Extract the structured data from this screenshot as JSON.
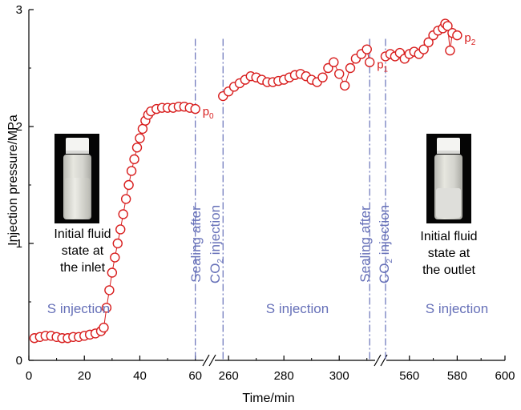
{
  "chart_data": {
    "type": "scatter",
    "title": "",
    "xlabel": "Time/min",
    "ylabel": "Injection pressure/MPa",
    "ylim": [
      0,
      3
    ],
    "yticks": [
      "0",
      "1",
      "2",
      "3"
    ],
    "x_segments": [
      {
        "range": [
          0,
          65
        ],
        "ticks": [
          "0",
          "20",
          "40",
          "60"
        ]
      },
      {
        "range": [
          253,
          315
        ],
        "ticks": [
          "260",
          "280",
          "300"
        ]
      },
      {
        "range": [
          548,
          600
        ],
        "ticks": [
          "560",
          "580",
          "600"
        ]
      }
    ],
    "series": [
      {
        "name": "Injection pressure",
        "color": "#d81e1e",
        "points": [
          [
            2,
            0.19
          ],
          [
            4,
            0.2
          ],
          [
            6,
            0.21
          ],
          [
            8,
            0.21
          ],
          [
            10,
            0.2
          ],
          [
            12,
            0.19
          ],
          [
            14,
            0.19
          ],
          [
            16,
            0.2
          ],
          [
            18,
            0.2
          ],
          [
            20,
            0.21
          ],
          [
            22,
            0.22
          ],
          [
            24,
            0.23
          ],
          [
            26,
            0.25
          ],
          [
            27,
            0.28
          ],
          [
            28,
            0.45
          ],
          [
            29,
            0.6
          ],
          [
            30,
            0.75
          ],
          [
            31,
            0.88
          ],
          [
            32,
            1.0
          ],
          [
            33,
            1.12
          ],
          [
            34,
            1.25
          ],
          [
            35,
            1.38
          ],
          [
            36,
            1.5
          ],
          [
            37,
            1.62
          ],
          [
            38,
            1.72
          ],
          [
            39,
            1.82
          ],
          [
            40,
            1.9
          ],
          [
            41,
            1.98
          ],
          [
            42,
            2.05
          ],
          [
            43,
            2.1
          ],
          [
            44,
            2.13
          ],
          [
            46,
            2.15
          ],
          [
            48,
            2.16
          ],
          [
            50,
            2.16
          ],
          [
            52,
            2.16
          ],
          [
            54,
            2.17
          ],
          [
            56,
            2.17
          ],
          [
            58,
            2.16
          ],
          [
            60,
            2.15
          ],
          [
            258,
            2.26
          ],
          [
            260,
            2.3
          ],
          [
            262,
            2.34
          ],
          [
            264,
            2.37
          ],
          [
            266,
            2.4
          ],
          [
            268,
            2.43
          ],
          [
            270,
            2.42
          ],
          [
            272,
            2.4
          ],
          [
            274,
            2.38
          ],
          [
            276,
            2.38
          ],
          [
            278,
            2.39
          ],
          [
            280,
            2.4
          ],
          [
            282,
            2.42
          ],
          [
            284,
            2.44
          ],
          [
            286,
            2.45
          ],
          [
            288,
            2.43
          ],
          [
            290,
            2.4
          ],
          [
            292,
            2.38
          ],
          [
            294,
            2.42
          ],
          [
            296,
            2.5
          ],
          [
            298,
            2.55
          ],
          [
            300,
            2.45
          ],
          [
            302,
            2.35
          ],
          [
            304,
            2.5
          ],
          [
            306,
            2.58
          ],
          [
            308,
            2.62
          ],
          [
            310,
            2.66
          ],
          [
            311,
            2.55
          ],
          [
            550,
            2.6
          ],
          [
            552,
            2.62
          ],
          [
            554,
            2.6
          ],
          [
            556,
            2.63
          ],
          [
            558,
            2.58
          ],
          [
            560,
            2.62
          ],
          [
            562,
            2.64
          ],
          [
            564,
            2.62
          ],
          [
            566,
            2.66
          ],
          [
            568,
            2.72
          ],
          [
            570,
            2.78
          ],
          [
            572,
            2.82
          ],
          [
            574,
            2.84
          ],
          [
            575,
            2.88
          ],
          [
            576,
            2.86
          ],
          [
            577,
            2.65
          ],
          [
            578,
            2.8
          ],
          [
            580,
            2.78
          ]
        ]
      }
    ],
    "point_labels": [
      {
        "base": "p",
        "sub": "0",
        "x": 60,
        "y": 2.15
      },
      {
        "base": "p",
        "sub": "1",
        "x": 311,
        "y": 2.55
      },
      {
        "base": "p",
        "sub": "2",
        "x": 580,
        "y": 2.78
      }
    ],
    "event_lines": [
      {
        "x": 60,
        "label_top": "Sealing after",
        "label_bottom_base": "CO",
        "label_bottom_sub": "2",
        "label_bottom_rest": " injection"
      },
      {
        "x": 258
      },
      {
        "x": 311,
        "label_top": "Sealing after",
        "label_bottom_base": "CO",
        "label_bottom_sub": "2",
        "label_bottom_rest": " injection"
      },
      {
        "x": 550
      }
    ],
    "region_labels": [
      "S injection",
      "S injection",
      "S injection"
    ],
    "annotations": [
      {
        "lines": [
          "Initial fluid",
          "state at",
          "the inlet"
        ]
      },
      {
        "lines": [
          "Initial fluid",
          "state at",
          "the outlet"
        ]
      }
    ]
  }
}
